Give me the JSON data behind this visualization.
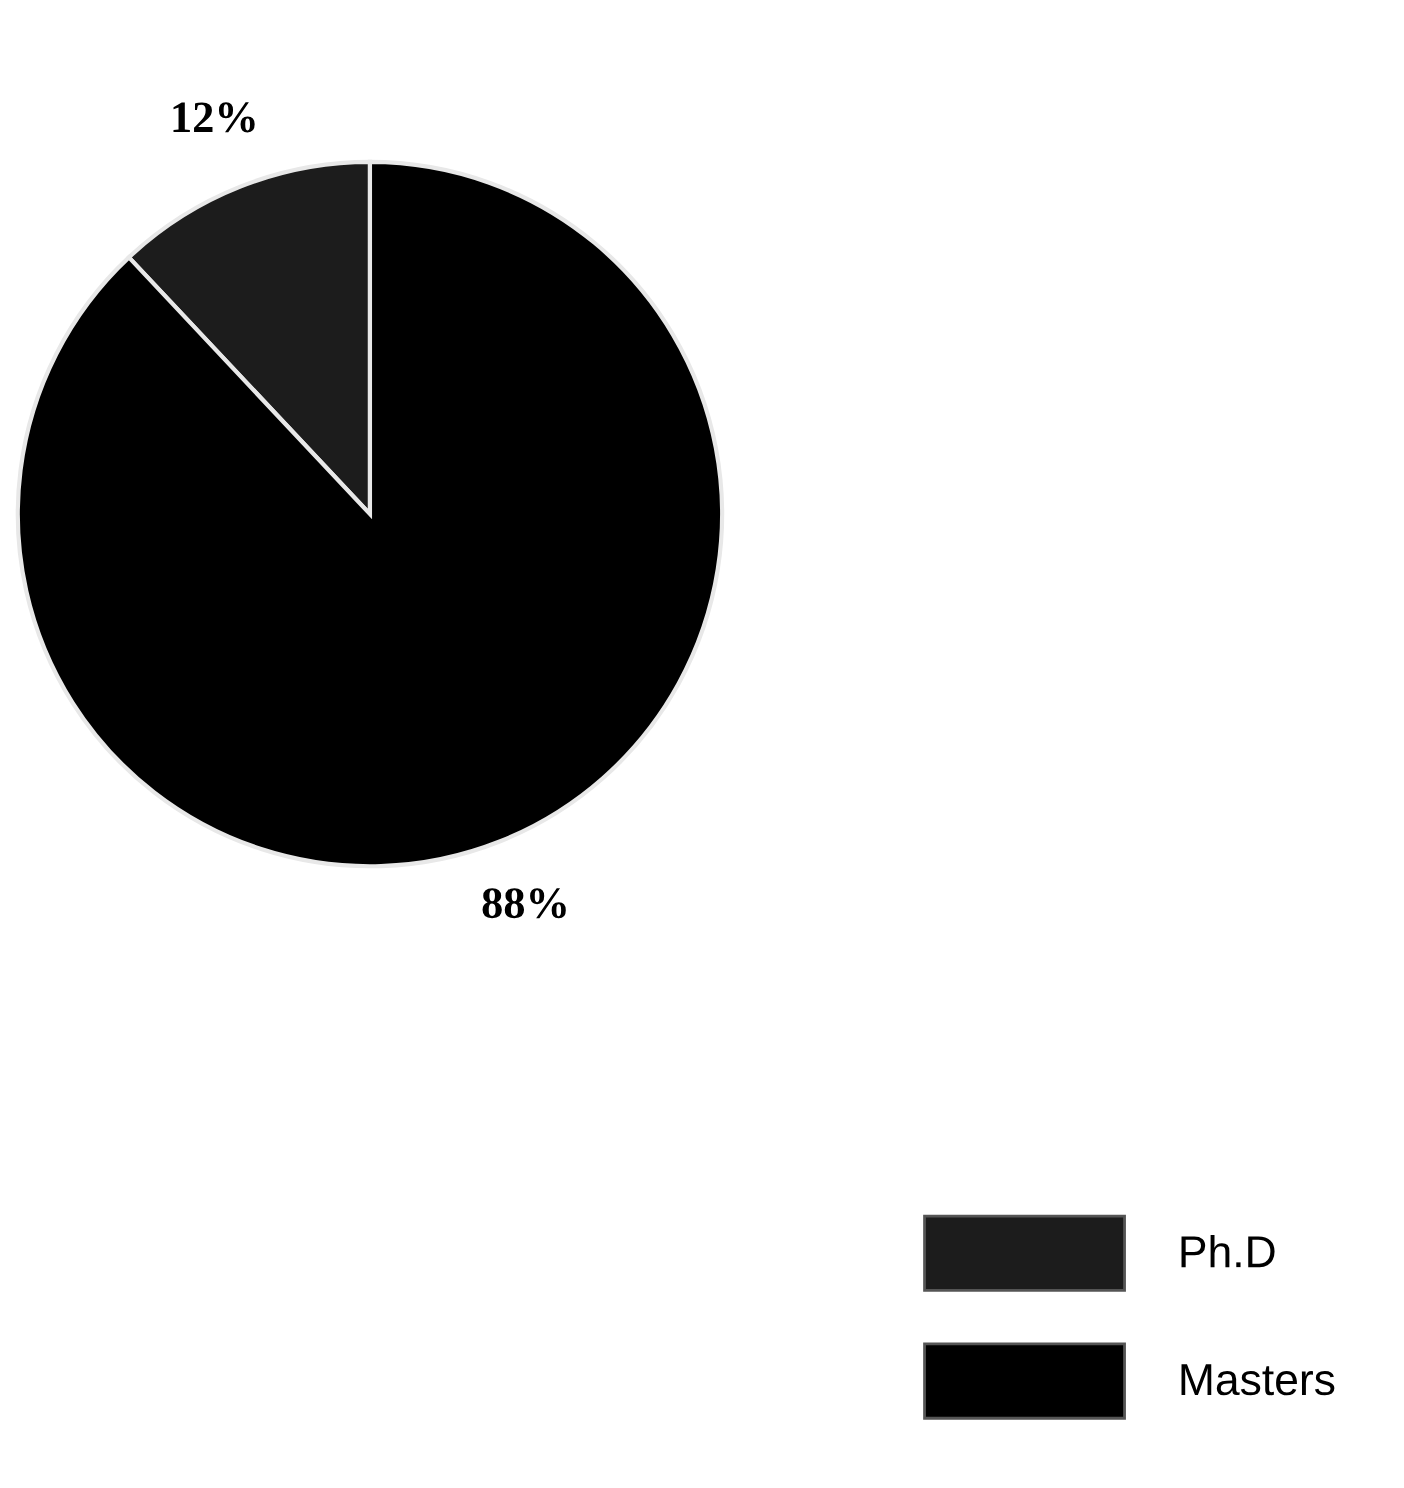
{
  "chart_data": {
    "type": "pie",
    "categories": [
      "Ph.D",
      "Masters"
    ],
    "values": [
      12,
      88
    ],
    "colors": [
      "#1c1c1c",
      "#000000"
    ],
    "value_labels": [
      "12%",
      "88%"
    ],
    "legend": "bottom right"
  }
}
